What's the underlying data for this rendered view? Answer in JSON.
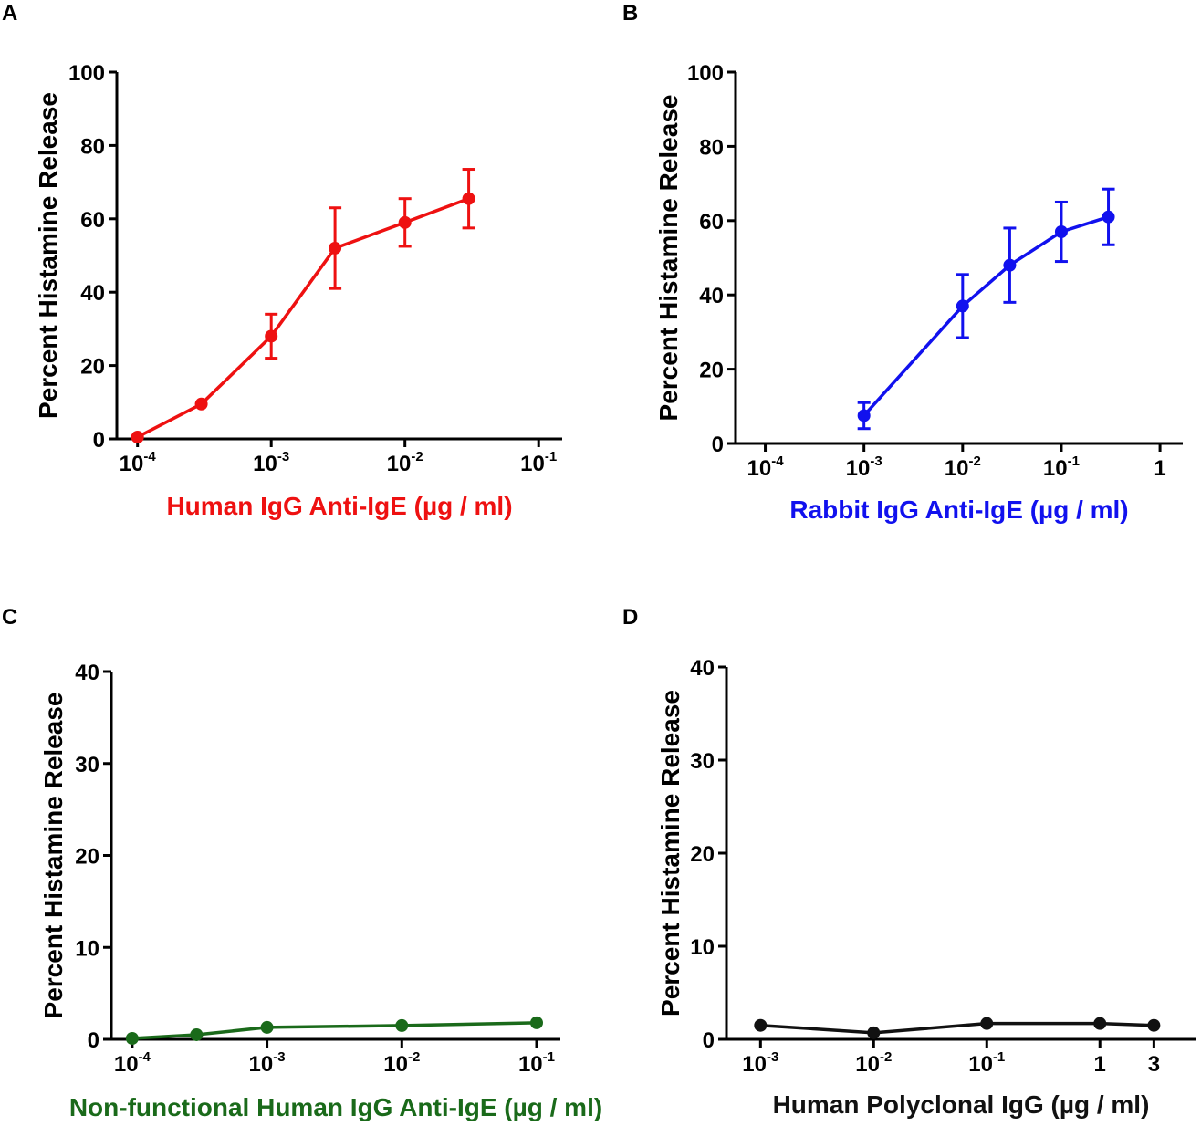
{
  "chart_data": [
    {
      "panel": "A",
      "type": "line",
      "color": "#ee1111",
      "xscale": "log",
      "xlabel": "Human IgG Anti-IgE (µg / ml)",
      "ylabel": "Percent  Histamine  Release",
      "xlim": [
        7e-05,
        0.15
      ],
      "ylim": [
        0,
        100
      ],
      "yticks": [
        0,
        20,
        40,
        60,
        80,
        100
      ],
      "xticks": [
        {
          "value": 0.0001,
          "base": "10",
          "exp": "-4"
        },
        {
          "value": 0.001,
          "base": "10",
          "exp": "-3"
        },
        {
          "value": 0.01,
          "base": "10",
          "exp": "-2"
        },
        {
          "value": 0.1,
          "base": "10",
          "exp": "-1"
        }
      ],
      "series": [
        {
          "name": "Human IgG Anti-IgE",
          "x": [
            0.0001,
            0.0003,
            0.001,
            0.003,
            0.01,
            0.03
          ],
          "y": [
            0.5,
            9.5,
            28,
            52,
            59,
            65.5
          ],
          "err": [
            0,
            0,
            6,
            11,
            6.5,
            8
          ]
        }
      ]
    },
    {
      "panel": "B",
      "type": "line",
      "color": "#1111ee",
      "xscale": "log",
      "xlabel": "Rabbit IgG Anti-IgE (µg / ml)",
      "ylabel": "Percent  Histamine  Release",
      "xlim": [
        5e-05,
        1.7
      ],
      "ylim": [
        0,
        100
      ],
      "yticks": [
        0,
        20,
        40,
        60,
        80,
        100
      ],
      "xticks": [
        {
          "value": 0.0001,
          "base": "10",
          "exp": "-4"
        },
        {
          "value": 0.001,
          "base": "10",
          "exp": "-3"
        },
        {
          "value": 0.01,
          "base": "10",
          "exp": "-2"
        },
        {
          "value": 0.1,
          "base": "10",
          "exp": "-1"
        },
        {
          "value": 1,
          "base": "1",
          "exp": ""
        }
      ],
      "series": [
        {
          "name": "Rabbit IgG Anti-IgE",
          "x": [
            0.001,
            0.01,
            0.03,
            0.1,
            0.3
          ],
          "y": [
            7.5,
            37,
            48,
            57,
            61
          ],
          "err": [
            3.5,
            8.5,
            10,
            8,
            7.5
          ]
        }
      ]
    },
    {
      "panel": "C",
      "type": "line",
      "color": "#1a6a1a",
      "xscale": "log",
      "xlabel": "Non-functional Human IgG Anti-IgE (µg / ml)",
      "ylabel": "Percent  Histamine  Release",
      "xlim": [
        7e-05,
        0.15
      ],
      "ylim": [
        0,
        40
      ],
      "yticks": [
        0,
        10,
        20,
        30,
        40
      ],
      "xticks": [
        {
          "value": 0.0001,
          "base": "10",
          "exp": "-4"
        },
        {
          "value": 0.001,
          "base": "10",
          "exp": "-3"
        },
        {
          "value": 0.01,
          "base": "10",
          "exp": "-2"
        },
        {
          "value": 0.1,
          "base": "10",
          "exp": "-1"
        }
      ],
      "series": [
        {
          "name": "Non-functional Human IgG Anti-IgE",
          "x": [
            0.0001,
            0.0003,
            0.001,
            0.01,
            0.1
          ],
          "y": [
            0.1,
            0.5,
            1.3,
            1.5,
            1.8
          ],
          "err": [
            0,
            0,
            0,
            0,
            0
          ]
        }
      ]
    },
    {
      "panel": "D",
      "type": "line",
      "color": "#111111",
      "xscale": "log",
      "xlabel": "Human Polyclonal IgG (µg / ml)",
      "ylabel": "Percent  Histamine  Release",
      "xlim": [
        0.0005,
        7
      ],
      "ylim": [
        0,
        40
      ],
      "yticks": [
        0,
        10,
        20,
        30,
        40
      ],
      "xticks": [
        {
          "value": 0.001,
          "base": "10",
          "exp": "-3"
        },
        {
          "value": 0.01,
          "base": "10",
          "exp": "-2"
        },
        {
          "value": 0.1,
          "base": "10",
          "exp": "-1"
        },
        {
          "value": 1,
          "base": "1",
          "exp": ""
        },
        {
          "value": 3,
          "base": "3",
          "exp": ""
        }
      ],
      "series": [
        {
          "name": "Human Polyclonal IgG",
          "x": [
            0.001,
            0.01,
            0.1,
            1,
            3
          ],
          "y": [
            1.5,
            0.7,
            1.7,
            1.7,
            1.5
          ],
          "err": [
            0,
            0,
            0,
            0,
            0
          ]
        }
      ]
    }
  ]
}
